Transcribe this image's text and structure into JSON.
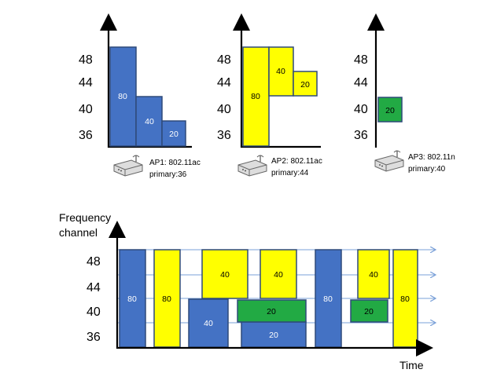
{
  "colors": {
    "width80": "#4472c4",
    "width40_ap1": "#4472c4",
    "ap2": "#ffff00",
    "ap3": "#22aa44",
    "timeline": "#7aa0d8",
    "outline": "#2e4a7a"
  },
  "channels": [
    "48",
    "44",
    "40",
    "36"
  ],
  "access_points": [
    {
      "caption_line1": "AP1: 802.11ac",
      "caption_line2": "primary:36",
      "icon": "router-icon",
      "blocks": [
        {
          "label": "80",
          "color": "#4472c4",
          "text_color": "#ffffff"
        },
        {
          "label": "40",
          "color": "#4472c4",
          "text_color": "#ffffff"
        },
        {
          "label": "20",
          "color": "#4472c4",
          "text_color": "#ffffff"
        }
      ]
    },
    {
      "caption_line1": "AP2: 802.11ac",
      "caption_line2": "primary:44",
      "icon": "router-icon",
      "blocks": [
        {
          "label": "80",
          "color": "#ffff00",
          "text_color": "#000000"
        },
        {
          "label": "40",
          "color": "#ffff00",
          "text_color": "#000000"
        },
        {
          "label": "20",
          "color": "#ffff00",
          "text_color": "#000000"
        }
      ]
    },
    {
      "caption_line1": "AP3: 802.11n",
      "caption_line2": "primary:40",
      "icon": "router-icon",
      "blocks": [
        {
          "label": "20",
          "color": "#22aa44",
          "text_color": "#000000"
        }
      ]
    }
  ],
  "timeline": {
    "y_title_line1": "Frequency",
    "y_title_line2": "channel",
    "x_title": "Time",
    "channels": [
      "48",
      "44",
      "40",
      "36"
    ],
    "blocks": [
      {
        "label": "80",
        "color": "#4472c4",
        "text_color": "#ffffff"
      },
      {
        "label": "80",
        "color": "#ffff00",
        "text_color": "#000000"
      },
      {
        "label": "40",
        "color": "#4472c4",
        "text_color": "#ffffff"
      },
      {
        "label": "40",
        "color": "#ffff00",
        "text_color": "#000000"
      },
      {
        "label": "40",
        "color": "#ffff00",
        "text_color": "#000000"
      },
      {
        "label": "20",
        "color": "#4472c4",
        "text_color": "#ffffff"
      },
      {
        "label": "20",
        "color": "#22aa44",
        "text_color": "#000000"
      },
      {
        "label": "80",
        "color": "#4472c4",
        "text_color": "#ffffff"
      },
      {
        "label": "40",
        "color": "#ffff00",
        "text_color": "#000000"
      },
      {
        "label": "20",
        "color": "#22aa44",
        "text_color": "#000000"
      },
      {
        "label": "80",
        "color": "#ffff00",
        "text_color": "#000000"
      }
    ]
  }
}
